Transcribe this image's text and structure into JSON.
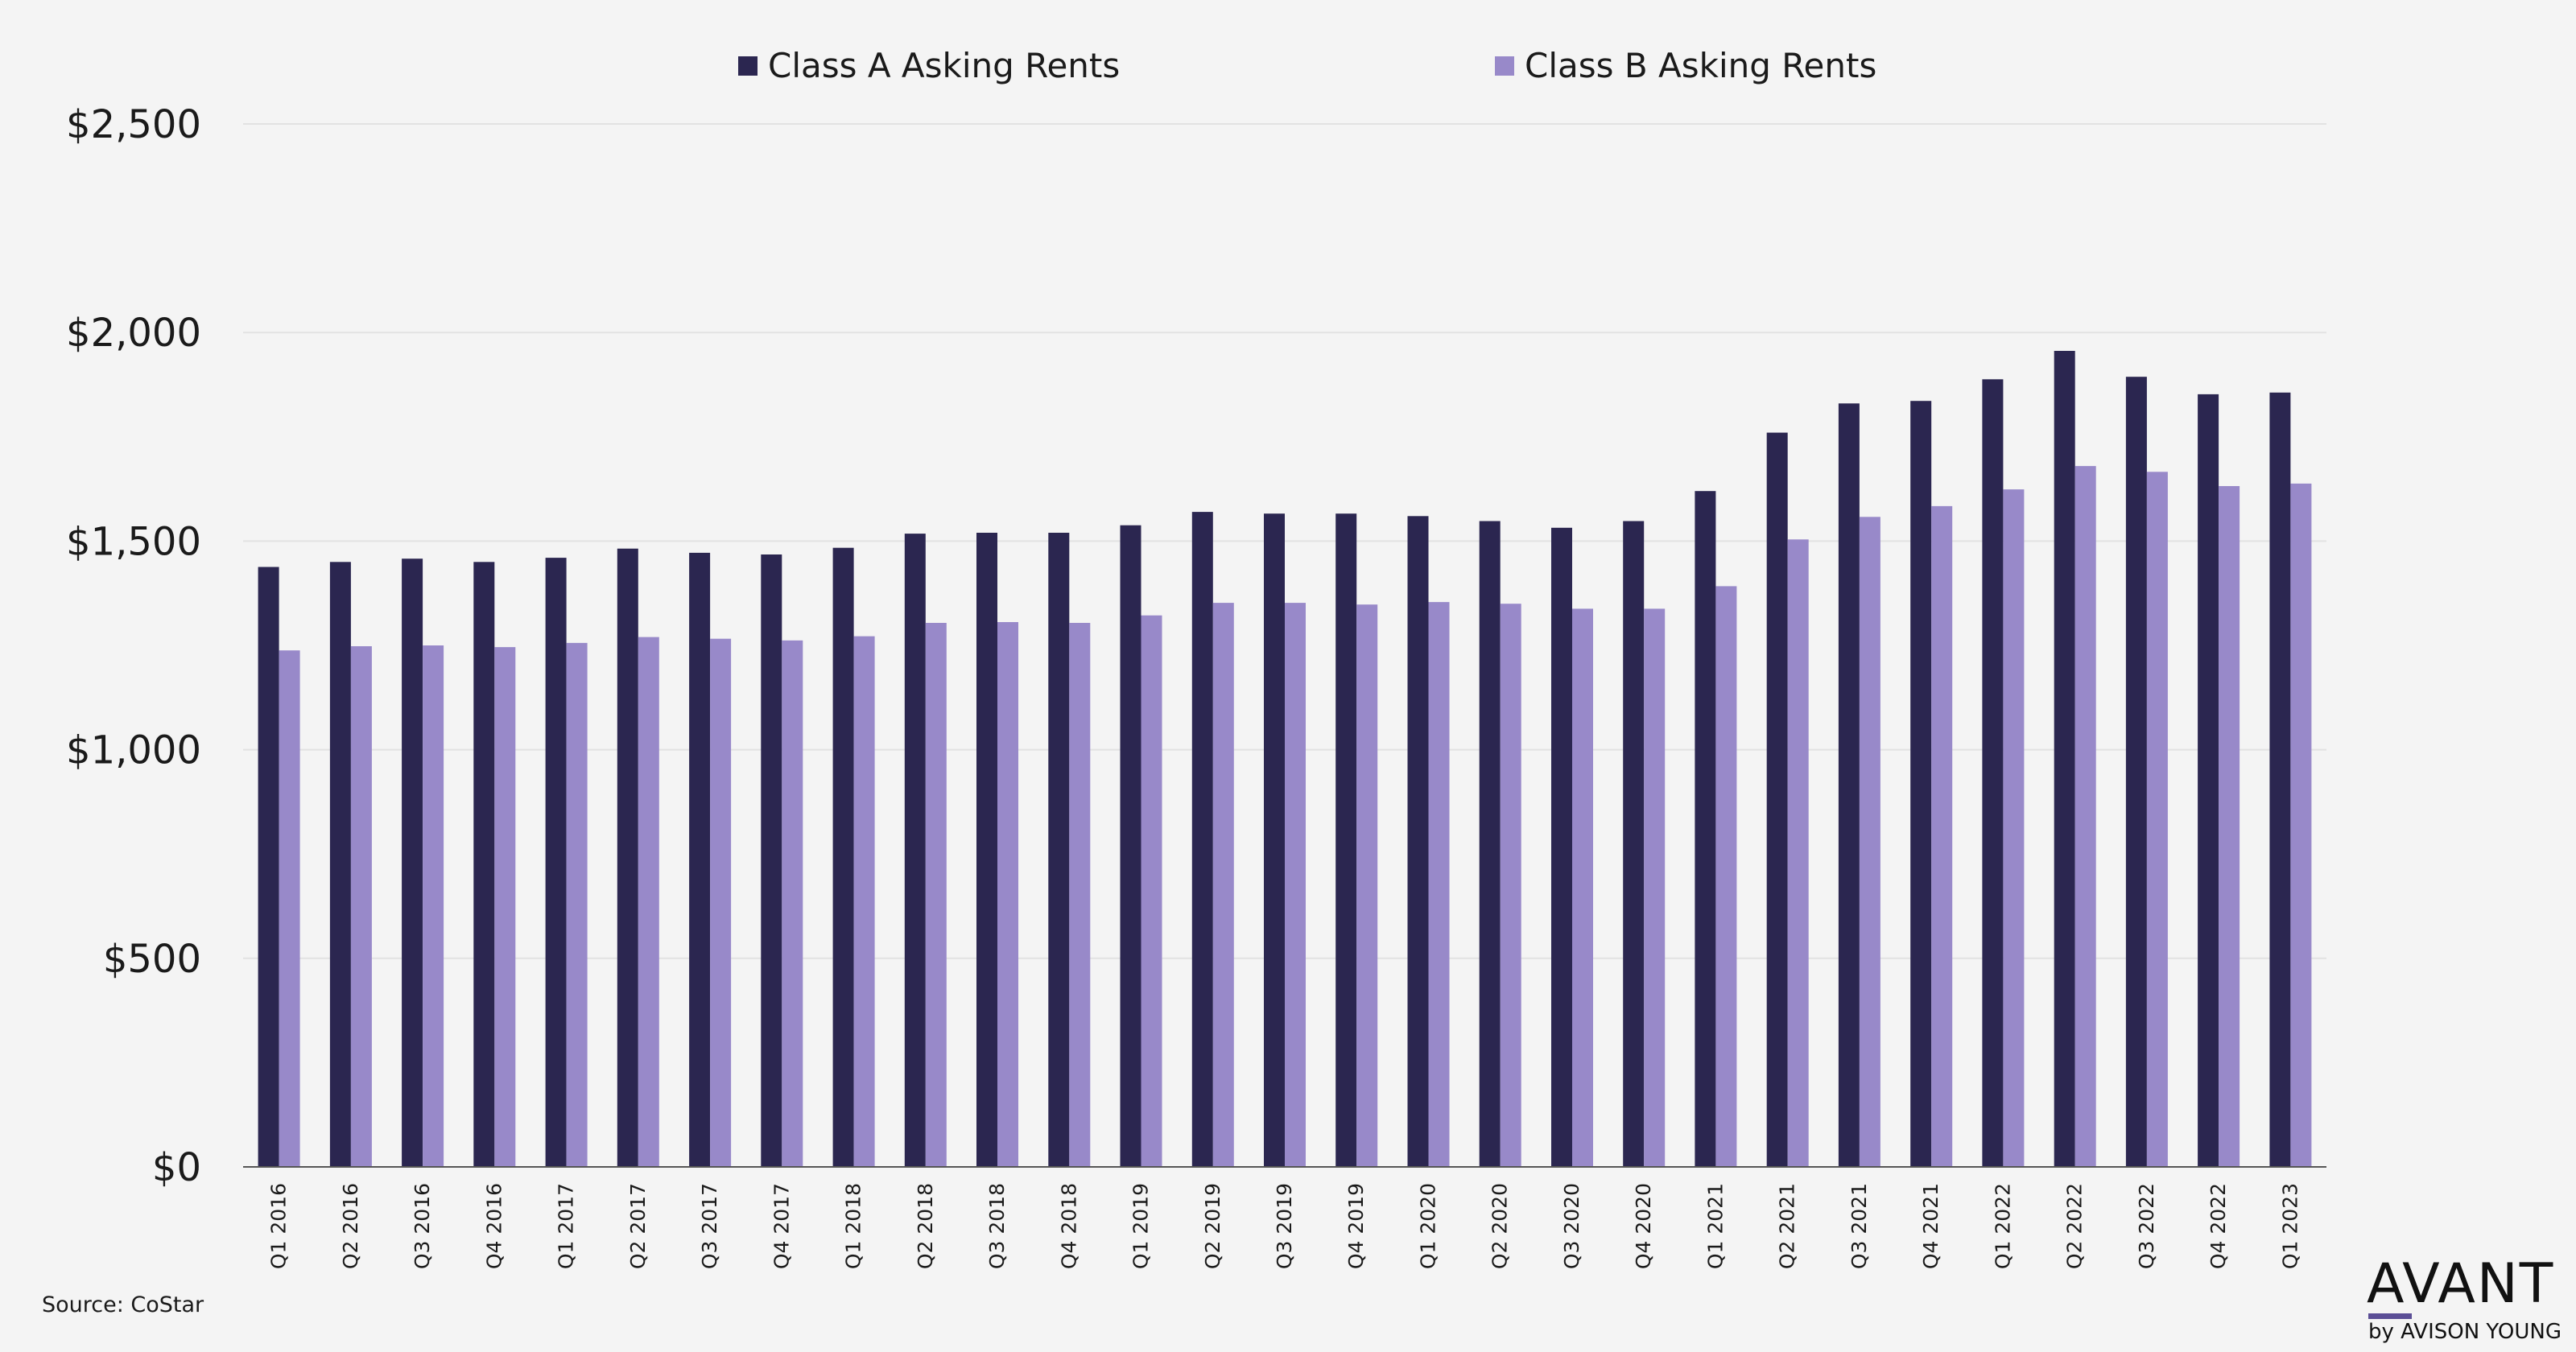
{
  "colors": {
    "background": "#f4f4f4",
    "class_a": "#2b2650",
    "class_b": "#9889c9",
    "grid": "#e2e2e2",
    "axis": "#555555"
  },
  "source_note": "Source: CoStar",
  "logo": {
    "word": "AVANT",
    "sub": "by AVISON YOUNG"
  },
  "chart_data": {
    "type": "bar",
    "ylim": [
      0,
      2500
    ],
    "yticks": [
      0,
      500,
      1000,
      1500,
      2000,
      2500
    ],
    "ytick_labels": [
      "$0",
      "$500",
      "$1,000",
      "$1,500",
      "$2,000",
      "$2,500"
    ],
    "grid": true,
    "legend_position": "top-center",
    "categories": [
      "Q1 2016",
      "Q2 2016",
      "Q3 2016",
      "Q4 2016",
      "Q1 2017",
      "Q2 2017",
      "Q3 2017",
      "Q4 2017",
      "Q1 2018",
      "Q2 2018",
      "Q3 2018",
      "Q4 2018",
      "Q1 2019",
      "Q2 2019",
      "Q3 2019",
      "Q4 2019",
      "Q1 2020",
      "Q2 2020",
      "Q3 2020",
      "Q4 2020",
      "Q1 2021",
      "Q2 2021",
      "Q3 2021",
      "Q4 2021",
      "Q1 2022",
      "Q2 2022",
      "Q3 2022",
      "Q4 2022",
      "Q1 2023"
    ],
    "series": [
      {
        "name": "Class A Asking Rents",
        "values": [
          1438,
          1450,
          1458,
          1450,
          1460,
          1482,
          1472,
          1468,
          1484,
          1518,
          1520,
          1520,
          1538,
          1570,
          1566,
          1566,
          1560,
          1548,
          1532,
          1548,
          1620,
          1760,
          1830,
          1836,
          1888,
          1956,
          1894,
          1852,
          1856
        ]
      },
      {
        "name": "Class B Asking Rents",
        "values": [
          1238,
          1248,
          1250,
          1246,
          1256,
          1270,
          1266,
          1262,
          1272,
          1304,
          1306,
          1304,
          1322,
          1352,
          1352,
          1348,
          1354,
          1350,
          1338,
          1338,
          1392,
          1504,
          1558,
          1584,
          1624,
          1680,
          1666,
          1632,
          1638
        ]
      }
    ]
  }
}
